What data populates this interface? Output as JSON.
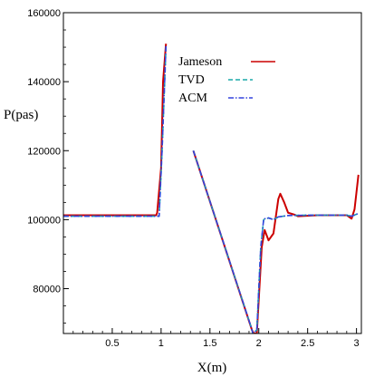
{
  "chart_data": {
    "type": "line",
    "xlabel": "X(m)",
    "ylabel": "P(pas)",
    "xlim": [
      0,
      3.05
    ],
    "ylim": [
      67000,
      160000
    ],
    "xticks": [
      0.5,
      1,
      1.5,
      2,
      2.5,
      3
    ],
    "xtick_labels": [
      "0.5",
      "1",
      "1.5",
      "2",
      "2.5",
      "3"
    ],
    "yticks": [
      80000,
      100000,
      120000,
      140000,
      160000
    ],
    "ytick_labels": [
      "80000",
      "100000",
      "120000",
      "140000",
      "160000"
    ],
    "legend_position": "top-right",
    "series": [
      {
        "name": "Jameson",
        "color": "#cc0000",
        "dash": "solid",
        "points": [
          [
            0,
            101300
          ],
          [
            0.95,
            101300
          ],
          [
            0.96,
            102000
          ],
          [
            1.0,
            115000
          ],
          [
            1.02,
            140000
          ],
          [
            1.05,
            151000
          ],
          null,
          [
            1.33,
            120000
          ],
          [
            1.93,
            68000
          ],
          [
            1.95,
            67000
          ],
          [
            1.98,
            67000
          ],
          [
            2.03,
            92000
          ],
          [
            2.06,
            97000
          ],
          [
            2.1,
            94000
          ],
          [
            2.15,
            96000
          ],
          [
            2.2,
            106000
          ],
          [
            2.22,
            107500
          ],
          [
            2.26,
            105000
          ],
          [
            2.3,
            102000
          ],
          [
            2.36,
            101500
          ],
          [
            2.4,
            101000
          ],
          [
            2.6,
            101300
          ],
          [
            2.9,
            101300
          ],
          [
            2.95,
            100300
          ],
          [
            2.98,
            103000
          ],
          [
            3.0,
            108000
          ],
          [
            3.02,
            113000
          ]
        ]
      },
      {
        "name": "TVD",
        "color": "#1aa8a8",
        "dash": "dashed",
        "points": [
          [
            0,
            101000
          ],
          [
            0.98,
            101000
          ],
          [
            1.01,
            120000
          ],
          [
            1.05,
            150000
          ],
          null,
          [
            1.33,
            120000
          ],
          [
            1.92,
            69000
          ],
          [
            1.94,
            67000
          ],
          [
            1.98,
            68000
          ],
          [
            2.02,
            92000
          ],
          [
            2.05,
            100000
          ],
          [
            2.1,
            100500
          ],
          [
            2.15,
            100000
          ],
          [
            2.2,
            100800
          ],
          [
            2.3,
            101200
          ],
          [
            2.5,
            101300
          ],
          [
            2.9,
            101300
          ],
          [
            2.95,
            101000
          ],
          [
            3.02,
            101800
          ]
        ]
      },
      {
        "name": "ACM",
        "color": "#3344dd",
        "dash": "dashdot",
        "points": [
          [
            0,
            101000
          ],
          [
            0.98,
            101000
          ],
          [
            1.01,
            120000
          ],
          [
            1.05,
            150500
          ],
          null,
          [
            1.33,
            120000
          ],
          [
            1.92,
            69000
          ],
          [
            1.94,
            67000
          ],
          [
            1.98,
            68000
          ],
          [
            2.02,
            92000
          ],
          [
            2.05,
            100200
          ],
          [
            2.1,
            100500
          ],
          [
            2.15,
            100000
          ],
          [
            2.2,
            100800
          ],
          [
            2.3,
            101200
          ],
          [
            2.5,
            101300
          ],
          [
            2.9,
            101300
          ],
          [
            2.95,
            101000
          ],
          [
            3.02,
            101800
          ]
        ]
      }
    ]
  }
}
